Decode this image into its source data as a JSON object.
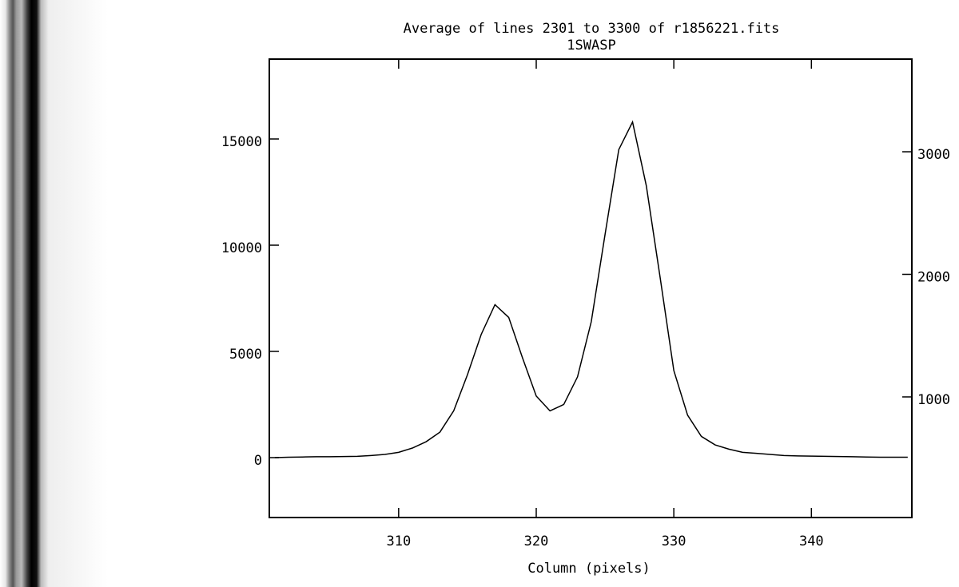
{
  "chart_data": {
    "type": "line",
    "title": "Average of lines 2301 to 3300 of r1856221.fits",
    "subtitle": "1SWASP",
    "x_label": "Column (pixels)",
    "x": [
      301,
      302,
      303,
      304,
      305,
      306,
      307,
      308,
      309,
      310,
      311,
      312,
      313,
      314,
      315,
      316,
      317,
      318,
      319,
      320,
      321,
      322,
      323,
      324,
      325,
      326,
      327,
      328,
      329,
      330,
      331,
      332,
      333,
      334,
      335,
      336,
      337,
      338,
      339,
      340,
      341,
      342,
      343,
      344,
      345,
      346,
      347
    ],
    "series": [
      {
        "color": "#000000",
        "values": [
          0,
          20,
          30,
          40,
          40,
          50,
          60,
          100,
          150,
          250,
          450,
          750,
          1200,
          2200,
          3900,
          5800,
          7200,
          6600,
          4700,
          2900,
          2200,
          2500,
          3800,
          6400,
          10500,
          14500,
          15800,
          12800,
          8500,
          4100,
          2000,
          1000,
          600,
          400,
          250,
          200,
          150,
          100,
          80,
          70,
          60,
          50,
          40,
          30,
          20,
          20,
          20
        ]
      }
    ],
    "xlim": [
      300.6,
      347.3
    ],
    "xticks": [
      310,
      320,
      330,
      340
    ],
    "ylim": [
      -2820,
      18760
    ],
    "yticks": [
      0,
      5000,
      10000,
      15000
    ],
    "y2lim": [
      16,
      3756
    ],
    "y2ticks": [
      1000,
      2000,
      3000
    ]
  }
}
